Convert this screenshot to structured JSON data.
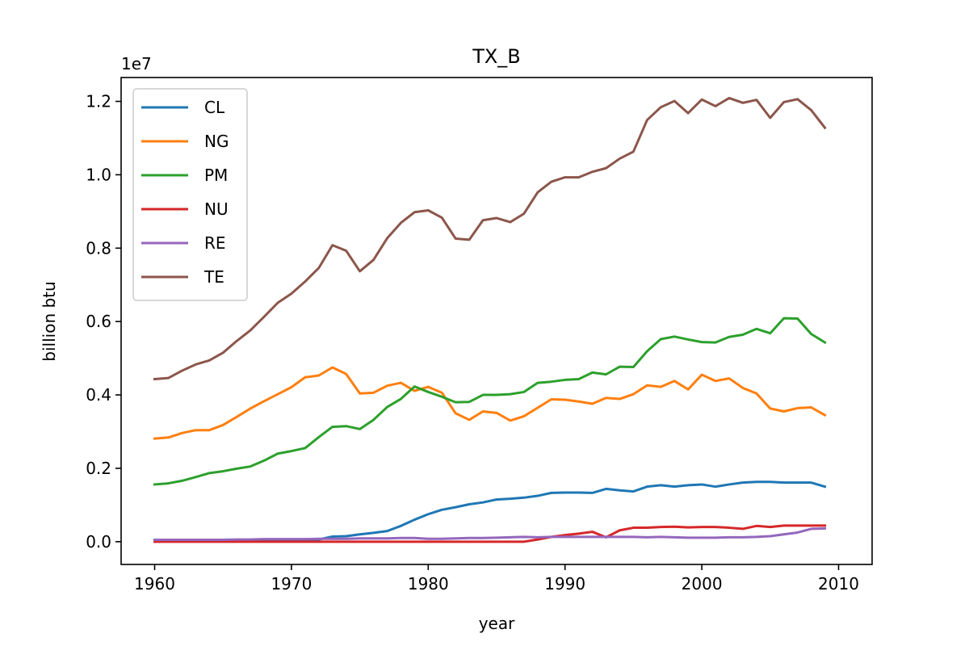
{
  "chart_data": {
    "type": "line",
    "title": "TX_B",
    "xlabel": "year",
    "ylabel": "billion btu",
    "y_multiplier_label": "1e7",
    "xlim": [
      1957.55,
      2012.45
    ],
    "ylim": [
      -0.062,
      1.265
    ],
    "x_ticks": [
      1960,
      1970,
      1980,
      1990,
      2000,
      2010
    ],
    "y_ticks": [
      0.0,
      0.2,
      0.4,
      0.6,
      0.8,
      1.0,
      1.2
    ],
    "y_tick_labels": [
      "0.0",
      "0.2",
      "0.4",
      "0.6",
      "0.8",
      "1.0",
      "1.2"
    ],
    "legend_position": "upper-left",
    "grid": false,
    "x": [
      1960,
      1961,
      1962,
      1963,
      1964,
      1965,
      1966,
      1967,
      1968,
      1969,
      1970,
      1971,
      1972,
      1973,
      1974,
      1975,
      1976,
      1977,
      1978,
      1979,
      1980,
      1981,
      1982,
      1983,
      1984,
      1985,
      1986,
      1987,
      1988,
      1989,
      1990,
      1991,
      1992,
      1993,
      1994,
      1995,
      1996,
      1997,
      1998,
      1999,
      2000,
      2001,
      2002,
      2003,
      2004,
      2005,
      2006,
      2007,
      2008,
      2009
    ],
    "series": [
      {
        "name": "CL",
        "color": "#1f77b4",
        "values": [
          0.004,
          0.004,
          0.004,
          0.004,
          0.004,
          0.004,
          0.004,
          0.004,
          0.004,
          0.004,
          0.004,
          0.004,
          0.006,
          0.014,
          0.015,
          0.02,
          0.024,
          0.029,
          0.043,
          0.06,
          0.075,
          0.087,
          0.094,
          0.102,
          0.107,
          0.115,
          0.117,
          0.12,
          0.125,
          0.133,
          0.134,
          0.134,
          0.133,
          0.144,
          0.14,
          0.137,
          0.15,
          0.154,
          0.15,
          0.154,
          0.156,
          0.15,
          0.156,
          0.161,
          0.163,
          0.163,
          0.161,
          0.161,
          0.161,
          0.15
        ]
      },
      {
        "name": "NG",
        "color": "#ff7f0e",
        "values": [
          0.281,
          0.284,
          0.296,
          0.304,
          0.304,
          0.318,
          0.34,
          0.363,
          0.383,
          0.402,
          0.421,
          0.448,
          0.453,
          0.475,
          0.457,
          0.404,
          0.406,
          0.425,
          0.433,
          0.411,
          0.422,
          0.406,
          0.35,
          0.332,
          0.355,
          0.351,
          0.33,
          0.342,
          0.365,
          0.388,
          0.387,
          0.382,
          0.376,
          0.392,
          0.389,
          0.402,
          0.426,
          0.422,
          0.438,
          0.415,
          0.455,
          0.438,
          0.445,
          0.419,
          0.404,
          0.363,
          0.355,
          0.364,
          0.366,
          0.345
        ]
      },
      {
        "name": "PM",
        "color": "#2ca02c",
        "values": [
          0.156,
          0.159,
          0.166,
          0.176,
          0.187,
          0.192,
          0.199,
          0.205,
          0.221,
          0.24,
          0.247,
          0.255,
          0.285,
          0.313,
          0.315,
          0.307,
          0.332,
          0.367,
          0.389,
          0.423,
          0.408,
          0.395,
          0.38,
          0.381,
          0.4,
          0.4,
          0.402,
          0.408,
          0.433,
          0.436,
          0.441,
          0.443,
          0.461,
          0.456,
          0.477,
          0.476,
          0.519,
          0.552,
          0.559,
          0.551,
          0.544,
          0.543,
          0.558,
          0.564,
          0.58,
          0.568,
          0.609,
          0.608,
          0.566,
          0.543
        ]
      },
      {
        "name": "NU",
        "color": "#d62728",
        "values": [
          0.0,
          0.0,
          0.0,
          0.0,
          0.0,
          0.0,
          0.0,
          0.0,
          0.0,
          0.0,
          0.0,
          0.0,
          0.0,
          0.0,
          0.0,
          0.0,
          0.0,
          0.0,
          0.0,
          0.0,
          0.0,
          0.0,
          0.0,
          0.0,
          0.0,
          0.0,
          0.0,
          0.0,
          0.006,
          0.013,
          0.018,
          0.022,
          0.027,
          0.012,
          0.031,
          0.038,
          0.038,
          0.04,
          0.041,
          0.039,
          0.04,
          0.04,
          0.038,
          0.035,
          0.043,
          0.04,
          0.044,
          0.044,
          0.044,
          0.044
        ]
      },
      {
        "name": "RE",
        "color": "#9467bd",
        "values": [
          0.005,
          0.005,
          0.005,
          0.005,
          0.005,
          0.005,
          0.006,
          0.006,
          0.007,
          0.007,
          0.007,
          0.007,
          0.008,
          0.008,
          0.008,
          0.009,
          0.009,
          0.009,
          0.01,
          0.01,
          0.008,
          0.008,
          0.009,
          0.01,
          0.01,
          0.011,
          0.012,
          0.013,
          0.012,
          0.013,
          0.013,
          0.013,
          0.013,
          0.013,
          0.013,
          0.013,
          0.012,
          0.013,
          0.012,
          0.011,
          0.011,
          0.011,
          0.012,
          0.012,
          0.013,
          0.015,
          0.02,
          0.025,
          0.035,
          0.036
        ]
      },
      {
        "name": "TE",
        "color": "#8c564b",
        "values": [
          0.443,
          0.446,
          0.466,
          0.483,
          0.494,
          0.515,
          0.547,
          0.576,
          0.613,
          0.651,
          0.676,
          0.709,
          0.746,
          0.808,
          0.793,
          0.737,
          0.768,
          0.827,
          0.869,
          0.898,
          0.903,
          0.883,
          0.826,
          0.823,
          0.876,
          0.882,
          0.871,
          0.894,
          0.952,
          0.981,
          0.993,
          0.993,
          1.008,
          1.018,
          1.044,
          1.063,
          1.149,
          1.184,
          1.201,
          1.168,
          1.205,
          1.187,
          1.209,
          1.196,
          1.204,
          1.155,
          1.198,
          1.206,
          1.176,
          1.128
        ]
      }
    ]
  }
}
